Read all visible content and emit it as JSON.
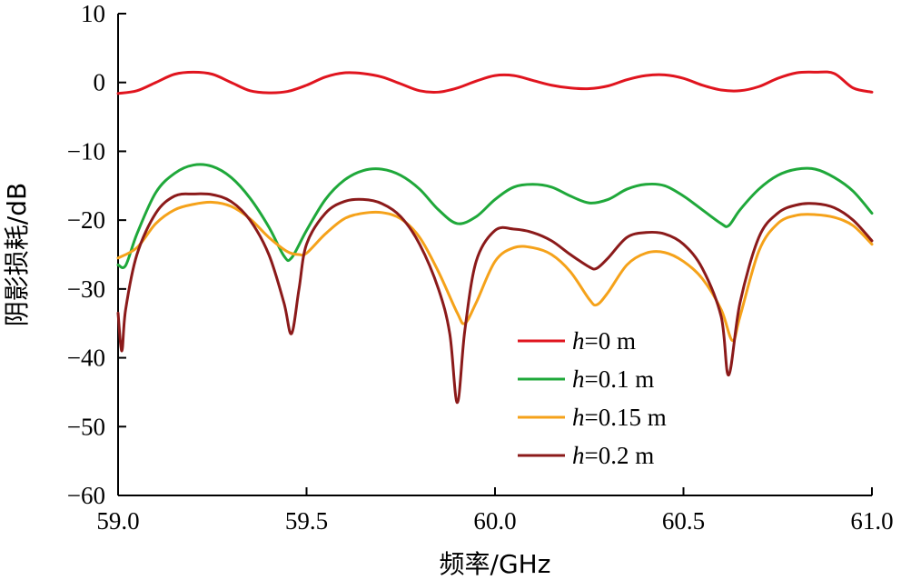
{
  "chart_data": {
    "type": "line",
    "title": "",
    "xlabel": "频率/GHz",
    "ylabel": "阴影损耗/dB",
    "xlim": [
      59.0,
      61.0
    ],
    "ylim": [
      -60,
      10
    ],
    "x_ticks": [
      "59.0",
      "59.5",
      "60.0",
      "60.5",
      "61.0"
    ],
    "y_ticks": [
      "10",
      "0",
      "−10",
      "−20",
      "−30",
      "−40",
      "−50",
      "−60"
    ],
    "x_tick_values": [
      59.0,
      59.5,
      60.0,
      60.5,
      61.0
    ],
    "y_tick_values": [
      10,
      0,
      -10,
      -20,
      -30,
      -40,
      -50,
      -60
    ],
    "grid": false,
    "legend_position": "lower-right",
    "series": [
      {
        "name": "h=0 m",
        "var": "h",
        "rest": "=0 m",
        "color": "#e0141e",
        "x": [
          59.0,
          59.05,
          59.1,
          59.15,
          59.2,
          59.25,
          59.3,
          59.35,
          59.4,
          59.45,
          59.5,
          59.55,
          59.6,
          59.65,
          59.7,
          59.75,
          59.8,
          59.85,
          59.9,
          59.95,
          60.0,
          60.05,
          60.1,
          60.15,
          60.2,
          60.25,
          60.3,
          60.35,
          60.4,
          60.45,
          60.5,
          60.55,
          60.6,
          60.65,
          60.7,
          60.75,
          60.8,
          60.85,
          60.9,
          60.95,
          61.0
        ],
        "y": [
          -1.6,
          -1.2,
          0.0,
          1.2,
          1.5,
          1.2,
          0.0,
          -1.2,
          -1.5,
          -1.3,
          -0.4,
          0.8,
          1.4,
          1.3,
          0.8,
          -0.2,
          -1.2,
          -1.4,
          -0.8,
          0.2,
          1.0,
          1.0,
          0.3,
          -0.4,
          -0.8,
          -0.9,
          -0.5,
          0.4,
          1.0,
          1.1,
          0.6,
          -0.4,
          -1.1,
          -1.2,
          -0.6,
          0.6,
          1.4,
          1.5,
          1.3,
          -0.8,
          -1.4
        ]
      },
      {
        "name": "h=0.1 m",
        "var": "h",
        "rest": "=0.1 m",
        "color": "#1fa83a",
        "x": [
          59.0,
          59.02,
          59.05,
          59.1,
          59.15,
          59.2,
          59.25,
          59.3,
          59.35,
          59.4,
          59.44,
          59.46,
          59.5,
          59.55,
          59.6,
          59.65,
          59.7,
          59.75,
          59.8,
          59.85,
          59.9,
          59.95,
          60.0,
          60.05,
          60.1,
          60.15,
          60.2,
          60.25,
          60.3,
          60.35,
          60.4,
          60.45,
          60.5,
          60.55,
          60.6,
          60.62,
          60.65,
          60.7,
          60.75,
          60.8,
          60.85,
          60.9,
          60.95,
          61.0
        ],
        "y": [
          -26.5,
          -26.6,
          -22.0,
          -16.0,
          -13.2,
          -12.0,
          -12.2,
          -13.8,
          -16.8,
          -21.0,
          -25.2,
          -25.5,
          -21.5,
          -17.0,
          -14.2,
          -12.8,
          -12.6,
          -13.5,
          -15.5,
          -18.5,
          -20.5,
          -19.5,
          -17.0,
          -15.2,
          -14.8,
          -15.2,
          -16.5,
          -17.5,
          -17.0,
          -15.5,
          -14.8,
          -15.0,
          -16.5,
          -18.5,
          -20.5,
          -20.8,
          -18.5,
          -15.5,
          -13.5,
          -12.6,
          -12.6,
          -13.8,
          -15.8,
          -19.0
        ]
      },
      {
        "name": "h=0.15 m",
        "var": "h",
        "rest": "=0.15 m",
        "color": "#f5a21a",
        "x": [
          59.0,
          59.05,
          59.1,
          59.15,
          59.2,
          59.25,
          59.3,
          59.35,
          59.4,
          59.45,
          59.48,
          59.5,
          59.55,
          59.6,
          59.65,
          59.7,
          59.75,
          59.8,
          59.85,
          59.9,
          59.92,
          59.95,
          60.0,
          60.05,
          60.1,
          60.15,
          60.2,
          60.25,
          60.27,
          60.3,
          60.35,
          60.4,
          60.45,
          60.5,
          60.55,
          60.6,
          60.63,
          60.65,
          60.7,
          60.75,
          60.8,
          60.85,
          60.9,
          60.95,
          61.0
        ],
        "y": [
          -25.5,
          -24.0,
          -20.5,
          -18.5,
          -17.7,
          -17.4,
          -18.0,
          -19.8,
          -22.5,
          -24.6,
          -25.0,
          -24.8,
          -22.0,
          -19.8,
          -19.0,
          -18.9,
          -19.8,
          -22.5,
          -27.5,
          -33.5,
          -35.0,
          -32.0,
          -26.0,
          -24.0,
          -24.0,
          -25.0,
          -27.5,
          -31.5,
          -32.3,
          -30.5,
          -26.5,
          -24.8,
          -24.7,
          -26.0,
          -28.5,
          -33.0,
          -37.5,
          -34.0,
          -24.5,
          -20.5,
          -19.3,
          -19.2,
          -19.6,
          -20.8,
          -23.5
        ]
      },
      {
        "name": "h=0.2 m",
        "var": "h",
        "rest": "=0.2 m",
        "color": "#8b1a1a",
        "x": [
          59.0,
          59.01,
          59.02,
          59.05,
          59.1,
          59.15,
          59.2,
          59.25,
          59.3,
          59.35,
          59.4,
          59.44,
          59.46,
          59.48,
          59.5,
          59.55,
          59.6,
          59.65,
          59.7,
          59.75,
          59.8,
          59.85,
          59.88,
          59.9,
          59.92,
          59.95,
          60.0,
          60.05,
          60.1,
          60.15,
          60.2,
          60.25,
          60.27,
          60.3,
          60.35,
          60.4,
          60.45,
          60.5,
          60.55,
          60.6,
          60.62,
          60.65,
          60.7,
          60.75,
          60.8,
          60.85,
          60.9,
          60.95,
          61.0
        ],
        "y": [
          -33.5,
          -39.0,
          -33.0,
          -25.0,
          -19.0,
          -16.5,
          -16.2,
          -16.3,
          -17.3,
          -20.0,
          -25.0,
          -32.0,
          -36.5,
          -30.0,
          -23.5,
          -19.0,
          -17.3,
          -17.0,
          -17.6,
          -19.5,
          -23.5,
          -30.0,
          -36.5,
          -46.5,
          -36.0,
          -26.0,
          -21.5,
          -21.3,
          -21.8,
          -23.0,
          -25.0,
          -26.8,
          -27.0,
          -25.5,
          -22.5,
          -21.8,
          -22.0,
          -23.5,
          -27.0,
          -34.0,
          -42.5,
          -32.0,
          -22.5,
          -19.0,
          -17.8,
          -17.6,
          -18.2,
          -20.0,
          -23.0
        ]
      }
    ]
  }
}
